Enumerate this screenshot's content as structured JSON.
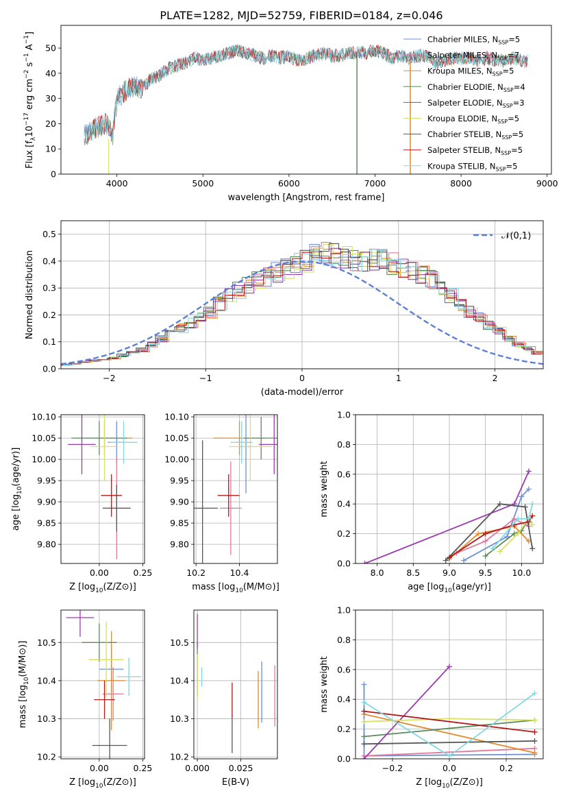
{
  "title": "PLATE=1282, MJD=52759, FIBERID=0184, z=0.046",
  "colors": [
    "#6b8fd6",
    "#e0789e",
    "#e08b2c",
    "#5a8a5a",
    "#9a3ab0",
    "#d8e060",
    "#555555",
    "#b01818",
    "#80d8e0"
  ],
  "chart_data": [
    {
      "type": "line",
      "id": "spectrum",
      "xlabel": "wavelength [Angstrom, rest frame]",
      "ylabel": "Flux [f",
      "xlim": [
        3350,
        9050
      ],
      "ylim": [
        0,
        59
      ],
      "xticks": [
        4000,
        5000,
        6000,
        7000,
        8000,
        9000
      ],
      "yticks": [
        0,
        10,
        20,
        30,
        40,
        50
      ],
      "x": [
        3620,
        3700,
        3800,
        3900,
        3950,
        4000,
        4100,
        4200,
        4300,
        4400,
        4500,
        4600,
        4700,
        4800,
        4900,
        5000,
        5100,
        5200,
        5300,
        5400,
        5500,
        5600,
        5700,
        5800,
        5900,
        6000,
        6100,
        6200,
        6300,
        6400,
        6500,
        6600,
        6700,
        6800,
        6900,
        7000,
        7100,
        7200,
        7300,
        7400,
        7500,
        7600,
        7700,
        7800,
        7900,
        8000,
        8100,
        8200,
        8300,
        8400,
        8500,
        8600,
        8700,
        8780
      ],
      "y": [
        15,
        17,
        19,
        20,
        15,
        30,
        33,
        35,
        34,
        38,
        39,
        42,
        43,
        44,
        46,
        45,
        46,
        47,
        48,
        49,
        48,
        47,
        46,
        47,
        46,
        47,
        45,
        46,
        47,
        48,
        47,
        47,
        48,
        48,
        48,
        49,
        48,
        46,
        47,
        46,
        47,
        47,
        44,
        45,
        46,
        46,
        46,
        45,
        46,
        45,
        45,
        46,
        45,
        45
      ],
      "legend": [
        {
          "label": "Chabrier MILES, N",
          "n": "5"
        },
        {
          "label": "Salpeter MILES, N",
          "n": "7"
        },
        {
          "label": "Kroupa MILES, N",
          "n": "5"
        },
        {
          "label": "Chabrier ELODIE, N",
          "n": "4"
        },
        {
          "label": "Salpeter ELODIE, N",
          "n": "3"
        },
        {
          "label": "Kroupa ELODIE, N",
          "n": "5"
        },
        {
          "label": "Chabrier STELIB, N",
          "n": "5"
        },
        {
          "label": "Salpeter STELIB, N",
          "n": "5"
        },
        {
          "label": "Kroupa STELIB, N",
          "n": "5"
        }
      ],
      "legend_sub": "SSP",
      "legend_loc": "right"
    },
    {
      "type": "histogram",
      "id": "residuals",
      "xlabel": "(data-model)/error",
      "ylabel": "Normed distribution",
      "xlim": [
        -2.5,
        2.5
      ],
      "ylim": [
        0,
        0.55
      ],
      "xticks": [
        -2,
        -1,
        0,
        1,
        2
      ],
      "yticks": [
        0.0,
        0.1,
        0.2,
        0.3,
        0.4,
        0.5
      ],
      "grid": true,
      "bin_width": 0.1,
      "bin_start": -2.5,
      "values": [
        0.015,
        0.02,
        0.025,
        0.03,
        0.035,
        0.04,
        0.05,
        0.06,
        0.07,
        0.09,
        0.11,
        0.13,
        0.15,
        0.17,
        0.19,
        0.21,
        0.24,
        0.27,
        0.29,
        0.31,
        0.33,
        0.34,
        0.36,
        0.37,
        0.39,
        0.4,
        0.42,
        0.43,
        0.42,
        0.41,
        0.4,
        0.4,
        0.41,
        0.4,
        0.39,
        0.38,
        0.36,
        0.35,
        0.33,
        0.3,
        0.27,
        0.24,
        0.21,
        0.19,
        0.16,
        0.14,
        0.11,
        0.09,
        0.075,
        0.06
      ],
      "normal_label": "𝒩(0,1)"
    },
    {
      "type": "errorbar",
      "id": "age_vs_Z",
      "xlabel": "Z [log",
      "ylabel": "age  [log",
      "xlim": [
        -0.22,
        0.26
      ],
      "ylim": [
        9.755,
        10.105
      ],
      "xticks": [
        0.0,
        0.25
      ],
      "yticks": [
        9.8,
        9.85,
        9.9,
        9.95,
        10.0,
        10.05,
        10.1
      ],
      "points": [
        {
          "x": 0.1,
          "y": 10.04,
          "xe": 0.05,
          "ye": 0.05,
          "c": 0
        },
        {
          "x": 0.1,
          "y": 9.885,
          "xe": 0.08,
          "ye": 0.12,
          "c": 1
        },
        {
          "x": 0.03,
          "y": 10.05,
          "xe": 0.16,
          "ye": 0.04,
          "c": 2
        },
        {
          "x": 0.0,
          "y": 10.05,
          "xe": 0.16,
          "ye": 0.04,
          "c": 3
        },
        {
          "x": -0.1,
          "y": 10.035,
          "xe": 0.08,
          "ye": 0.07,
          "c": 4
        },
        {
          "x": 0.03,
          "y": 10.03,
          "xe": 0.08,
          "ye": 0.08,
          "c": 5
        },
        {
          "x": 0.1,
          "y": 9.885,
          "xe": 0.08,
          "ye": 0.055,
          "c": 6
        },
        {
          "x": 0.07,
          "y": 9.915,
          "xe": 0.06,
          "ye": 0.05,
          "c": 7
        },
        {
          "x": 0.14,
          "y": 10.04,
          "xe": 0.08,
          "ye": 0.05,
          "c": 8
        }
      ]
    },
    {
      "type": "errorbar",
      "id": "age_vs_mass",
      "xlabel": "mass [log",
      "ylabel": "",
      "xlim": [
        10.19,
        10.575
      ],
      "ylim": [
        9.755,
        10.105
      ],
      "xticks": [
        10.2,
        10.4
      ],
      "yticks": [
        9.8,
        9.85,
        9.9,
        9.95,
        10.0,
        10.05,
        10.1
      ],
      "points": [
        {
          "x": 10.43,
          "y": 10.03,
          "xe": 0.03,
          "ye": 0.11,
          "c": 0
        },
        {
          "x": 10.36,
          "y": 9.885,
          "xe": 0.05,
          "ye": 0.11,
          "c": 1
        },
        {
          "x": 10.4,
          "y": 10.05,
          "xe": 0.12,
          "ye": 0.04,
          "c": 2
        },
        {
          "x": 10.5,
          "y": 10.05,
          "xe": 0.08,
          "ye": 0.05,
          "c": 3
        },
        {
          "x": 10.56,
          "y": 10.035,
          "xe": 0.07,
          "ye": 0.07,
          "c": 4
        },
        {
          "x": 10.45,
          "y": 10.03,
          "xe": 0.1,
          "ye": 0.08,
          "c": 5
        },
        {
          "x": 10.23,
          "y": 9.885,
          "xe": 0.07,
          "ye": 0.16,
          "c": 6
        },
        {
          "x": 10.35,
          "y": 9.915,
          "xe": 0.05,
          "ye": 0.05,
          "c": 7
        },
        {
          "x": 10.41,
          "y": 10.04,
          "xe": 0.05,
          "ye": 0.05,
          "c": 8
        }
      ]
    },
    {
      "type": "line",
      "id": "mw_vs_age",
      "xlabel": "age  [log",
      "ylabel": "mass weight",
      "xlim": [
        7.7,
        10.3
      ],
      "ylim": [
        0,
        1
      ],
      "xticks": [
        8.0,
        8.5,
        9.0,
        9.5,
        10.0
      ],
      "yticks": [
        0.0,
        0.2,
        0.4,
        0.6,
        0.8,
        1.0
      ],
      "grid": true,
      "series": [
        {
          "c": 0,
          "x": [
            9.2,
            9.8,
            10.0,
            10.1
          ],
          "y": [
            0.02,
            0.18,
            0.45,
            0.5
          ]
        },
        {
          "c": 1,
          "x": [
            9.1,
            9.5,
            9.9,
            10.1
          ],
          "y": [
            0.07,
            0.15,
            0.3,
            0.25
          ]
        },
        {
          "c": 2,
          "x": [
            9.0,
            9.4,
            9.9,
            10.1
          ],
          "y": [
            0.03,
            0.2,
            0.25,
            0.15
          ]
        },
        {
          "c": 3,
          "x": [
            9.5,
            9.9,
            10.0,
            10.1
          ],
          "y": [
            0.05,
            0.2,
            0.22,
            0.3
          ]
        },
        {
          "c": 4,
          "x": [
            7.83,
            9.9,
            10.1
          ],
          "y": [
            0.0,
            0.4,
            0.62
          ]
        },
        {
          "c": 5,
          "x": [
            9.7,
            9.95,
            10.1,
            10.15
          ],
          "y": [
            0.08,
            0.2,
            0.3,
            0.26
          ]
        },
        {
          "c": 6,
          "x": [
            8.95,
            9.7,
            10.05,
            10.15
          ],
          "y": [
            0.02,
            0.4,
            0.38,
            0.1
          ]
        },
        {
          "c": 7,
          "x": [
            9.0,
            9.5,
            9.9,
            10.1,
            10.15
          ],
          "y": [
            0.04,
            0.2,
            0.26,
            0.28,
            0.32
          ]
        },
        {
          "c": 8,
          "x": [
            9.6,
            9.95,
            10.1,
            10.15
          ],
          "y": [
            0.1,
            0.3,
            0.3,
            0.4
          ]
        }
      ]
    },
    {
      "type": "errorbar",
      "id": "mass_vs_Z",
      "xlabel": "Z [log",
      "ylabel": "mass [log",
      "xlim": [
        -0.22,
        0.26
      ],
      "ylim": [
        10.195,
        10.585
      ],
      "xticks": [
        0.0,
        0.25
      ],
      "yticks": [
        10.2,
        10.3,
        10.4,
        10.5
      ],
      "points": [
        {
          "x": 0.07,
          "y": 10.43,
          "xe": 0.07,
          "ye": 0.06,
          "c": 0
        },
        {
          "x": 0.08,
          "y": 10.365,
          "xe": 0.06,
          "ye": 0.07,
          "c": 1
        },
        {
          "x": 0.07,
          "y": 10.4,
          "xe": 0.08,
          "ye": 0.13,
          "c": 2
        },
        {
          "x": 0.0,
          "y": 10.5,
          "xe": 0.1,
          "ye": 0.05,
          "c": 3
        },
        {
          "x": -0.11,
          "y": 10.565,
          "xe": 0.08,
          "ye": 0.05,
          "c": 4
        },
        {
          "x": 0.04,
          "y": 10.455,
          "xe": 0.1,
          "ye": 0.1,
          "c": 5
        },
        {
          "x": 0.06,
          "y": 10.23,
          "xe": 0.1,
          "ye": 0.07,
          "c": 6
        },
        {
          "x": 0.03,
          "y": 10.35,
          "xe": 0.06,
          "ye": 0.05,
          "c": 7
        },
        {
          "x": 0.17,
          "y": 10.41,
          "xe": 0.07,
          "ye": 0.05,
          "c": 8
        }
      ]
    },
    {
      "type": "errorbar",
      "id": "mass_vs_ebv",
      "xlabel": "E(B-V)",
      "ylabel": "",
      "xlim": [
        -0.002,
        0.046
      ],
      "ylim": [
        10.195,
        10.585
      ],
      "xticks": [
        0.0,
        0.025
      ],
      "yticks": [
        10.2,
        10.3,
        10.4,
        10.5
      ],
      "points": [
        {
          "x": 0.037,
          "y": 10.37,
          "xe": 0.0,
          "ye": 0.08,
          "c": 0
        },
        {
          "x": 0.0445,
          "y": 10.36,
          "xe": 0.0,
          "ye": 0.08,
          "c": 1
        },
        {
          "x": 0.035,
          "y": 10.35,
          "xe": 0.0,
          "ye": 0.075,
          "c": 2
        },
        {
          "x": 0.0,
          "y": 10.43,
          "xe": 0.0,
          "ye": 0.07,
          "c": 3
        },
        {
          "x": 0.0,
          "y": 10.53,
          "xe": 0.0,
          "ye": 0.045,
          "c": 4
        },
        {
          "x": 0.0,
          "y": 10.41,
          "xe": 0.0,
          "ye": 0.06,
          "c": 5
        },
        {
          "x": 0.02,
          "y": 10.26,
          "xe": 0.0,
          "ye": 0.05,
          "c": 6
        },
        {
          "x": 0.02,
          "y": 10.35,
          "xe": 0.0,
          "ye": 0.045,
          "c": 7
        },
        {
          "x": 0.0025,
          "y": 10.41,
          "xe": 0.0,
          "ye": 0.025,
          "c": 8
        }
      ]
    },
    {
      "type": "line",
      "id": "mw_vs_Z",
      "xlabel": "Z [log",
      "ylabel": "mass weight",
      "xlim": [
        -0.33,
        0.33
      ],
      "ylim": [
        0,
        1
      ],
      "xticks": [
        -0.2,
        0.0,
        0.2
      ],
      "yticks": [
        0.0,
        0.2,
        0.4,
        0.6,
        0.8,
        1.0
      ],
      "grid": true,
      "series": [
        {
          "c": 0,
          "x": [
            -0.3,
            -0.3,
            0.3
          ],
          "y": [
            0.5,
            0.02,
            0.03
          ]
        },
        {
          "c": 1,
          "x": [
            -0.3,
            0.3
          ],
          "y": [
            0.02,
            0.07
          ]
        },
        {
          "c": 2,
          "x": [
            -0.3,
            0.3
          ],
          "y": [
            0.3,
            0.04
          ]
        },
        {
          "c": 3,
          "x": [
            -0.3,
            0.3
          ],
          "y": [
            0.15,
            0.26
          ]
        },
        {
          "c": 4,
          "x": [
            -0.3,
            0.0
          ],
          "y": [
            0.0,
            0.62
          ]
        },
        {
          "c": 5,
          "x": [
            -0.3,
            0.0,
            0.3
          ],
          "y": [
            0.25,
            0.27,
            0.26
          ]
        },
        {
          "c": 6,
          "x": [
            -0.3,
            0.3
          ],
          "y": [
            0.1,
            0.12
          ]
        },
        {
          "c": 7,
          "x": [
            -0.3,
            0.3
          ],
          "y": [
            0.32,
            0.18
          ]
        },
        {
          "c": 8,
          "x": [
            -0.3,
            0.0,
            0.3
          ],
          "y": [
            0.38,
            0.02,
            0.44
          ]
        }
      ]
    }
  ]
}
